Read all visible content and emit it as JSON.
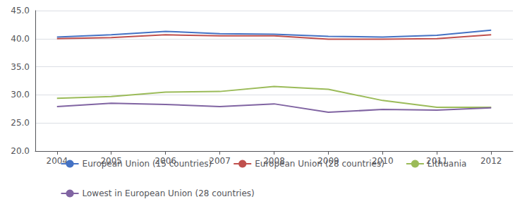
{
  "chart_data": {
    "type": "line",
    "x": [
      2004,
      2005,
      2006,
      2007,
      2008,
      2009,
      2010,
      2011,
      2012
    ],
    "xlim": [
      2003.6,
      2012.4
    ],
    "xticks": [
      2004,
      2005,
      2006,
      2007,
      2008,
      2009,
      2010,
      2011,
      2012
    ],
    "ylim": [
      20,
      45
    ],
    "yticks": [
      {
        "value": 20,
        "label": "20.0"
      },
      {
        "value": 25,
        "label": "25.0"
      },
      {
        "value": 30,
        "label": "30.0"
      },
      {
        "value": 35,
        "label": "35.0"
      },
      {
        "value": 40,
        "label": "40.0"
      },
      {
        "value": 45,
        "label": "45.0"
      }
    ],
    "grid": true,
    "legend": "bottom",
    "series": [
      {
        "name": "European Union (15 countries)",
        "color": "#4472C4",
        "values": [
          40.3,
          40.7,
          41.3,
          40.9,
          40.8,
          40.4,
          40.3,
          40.6,
          41.5
        ]
      },
      {
        "name": "European Union (28 countries)",
        "color": "#C0504D",
        "values": [
          40.0,
          40.2,
          40.7,
          40.5,
          40.5,
          39.9,
          39.9,
          40.0,
          40.7
        ]
      },
      {
        "name": "Lithuania",
        "color": "#9BBB59",
        "values": [
          29.4,
          29.7,
          30.5,
          30.6,
          31.5,
          31.0,
          29.0,
          27.8,
          27.8
        ]
      },
      {
        "name": "Lowest in European Union (28 countries)",
        "color": "#8064A2",
        "values": [
          27.9,
          28.5,
          28.3,
          27.9,
          28.4,
          26.9,
          27.4,
          27.3,
          27.7
        ]
      }
    ]
  }
}
